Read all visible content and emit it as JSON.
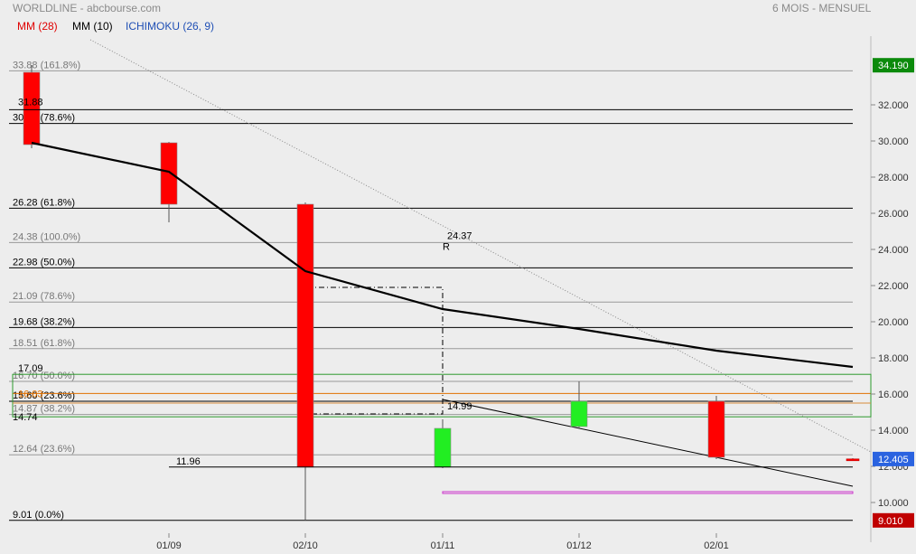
{
  "header": {
    "title": "WORLDLINE - abcbourse.com",
    "period": "6 MOIS - MENSUEL",
    "legend": [
      {
        "label": "MM (28)",
        "color": "#e00000"
      },
      {
        "label": "MM (10)",
        "color": "#000000"
      },
      {
        "label": "ICHIMOKU (26, 9)",
        "color": "#1f4fb5"
      }
    ]
  },
  "chart_data": {
    "type": "candlestick",
    "ylim": [
      8.3,
      35.8
    ],
    "y_ticks": [
      "10.000",
      "12.000",
      "14.000",
      "16.000",
      "18.000",
      "20.000",
      "22.000",
      "24.000",
      "26.000",
      "28.000",
      "30.000",
      "32.000"
    ],
    "y_tick_values": [
      10,
      12,
      14,
      16,
      18,
      20,
      22,
      24,
      26,
      28,
      30,
      32
    ],
    "x_ticks": [
      "01/09",
      "02/10",
      "01/11",
      "01/12",
      "02/01"
    ],
    "candles": [
      {
        "open": 33.8,
        "high": 34.2,
        "low": 29.6,
        "close": 29.8
      },
      {
        "open": 29.9,
        "high": 29.95,
        "low": 25.5,
        "close": 26.5
      },
      {
        "open": 26.5,
        "high": 26.6,
        "low": 9.01,
        "close": 11.96
      },
      {
        "open": 11.96,
        "high": 14.6,
        "low": 11.9,
        "close": 14.1
      },
      {
        "open": 14.2,
        "high": 16.7,
        "low": 14.1,
        "close": 15.6
      },
      {
        "open": 15.6,
        "high": 15.9,
        "low": 12.4,
        "close": 12.5
      },
      {
        "open": 12.41,
        "high": 12.45,
        "low": 12.3,
        "close": 12.4
      }
    ],
    "ma10_points": [
      29.9,
      28.3,
      22.8,
      20.7,
      19.6,
      18.4,
      17.5
    ],
    "fib_levels": [
      {
        "value": 33.88,
        "label": "33.88",
        "pct": "(161.8%)",
        "color": "#999999",
        "txt": "#777777"
      },
      {
        "value": 30.97,
        "label": "30.97",
        "pct": "(78.6%)",
        "color": "#000000",
        "txt": "#000000"
      },
      {
        "value": 26.28,
        "label": "26.28",
        "pct": "(61.8%)",
        "color": "#000000",
        "txt": "#000000"
      },
      {
        "value": 24.38,
        "label": "24.38",
        "pct": "(100.0%)",
        "color": "#999999",
        "txt": "#777777"
      },
      {
        "value": 22.98,
        "label": "22.98",
        "pct": "(50.0%)",
        "color": "#000000",
        "txt": "#000000"
      },
      {
        "value": 21.09,
        "label": "21.09",
        "pct": "(78.6%)",
        "color": "#999999",
        "txt": "#777777"
      },
      {
        "value": 19.68,
        "label": "19.68",
        "pct": "(38.2%)",
        "color": "#000000",
        "txt": "#000000"
      },
      {
        "value": 18.51,
        "label": "18.51",
        "pct": "(61.8%)",
        "color": "#999999",
        "txt": "#777777"
      },
      {
        "value": 16.7,
        "label": "16.70",
        "pct": "(50.0%)",
        "color": "#999999",
        "txt": "#777777"
      },
      {
        "value": 15.6,
        "label": "15.60",
        "pct": "(23.6%)",
        "color": "#000000",
        "txt": "#000000"
      },
      {
        "value": 14.87,
        "label": "14.87",
        "pct": "(38.2%)",
        "color": "#999999",
        "txt": "#777777"
      },
      {
        "value": 12.64,
        "label": "12.64",
        "pct": "(23.6%)",
        "color": "#999999",
        "txt": "#777777"
      },
      {
        "value": 9.01,
        "label": "9.01",
        "pct": "(0.0%)",
        "color": "#000000",
        "txt": "#000000"
      }
    ],
    "annotations": [
      {
        "text": "31.88",
        "value": 31.88
      },
      {
        "text": "17.09",
        "value": 17.09
      },
      {
        "text": "14.74",
        "value": 14.74
      },
      {
        "text": "16.03",
        "value": 16.03,
        "color": "#e07000"
      },
      {
        "text": "11.96",
        "value": 11.96
      },
      {
        "text": "14.99",
        "value": 14.99
      },
      {
        "text": "24.37",
        "value": 24.37
      },
      {
        "text": "R",
        "value": 24.37
      }
    ],
    "price_tags": [
      {
        "text": "34.190",
        "value": 34.19,
        "bg": "#0b8a0b"
      },
      {
        "text": "12.405",
        "value": 12.405,
        "bg": "#2a63e0"
      },
      {
        "text": "9.010",
        "value": 9.01,
        "bg": "#c00000"
      }
    ]
  }
}
